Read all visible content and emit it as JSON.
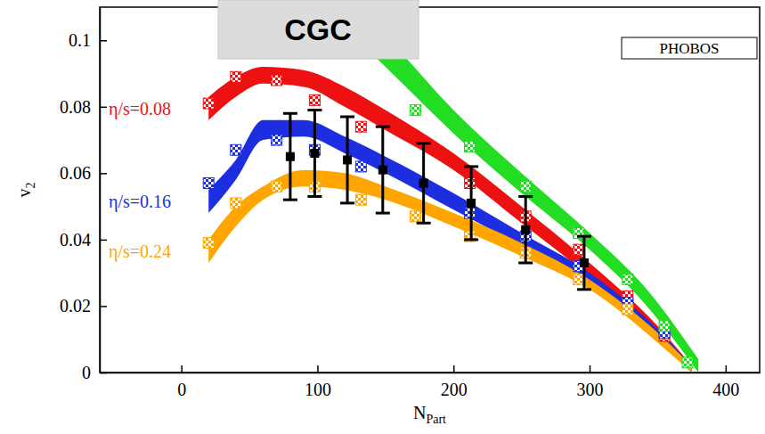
{
  "chart_data": {
    "type": "line",
    "x_label": "N",
    "x_label_subscript": "Part",
    "y_label": "v",
    "y_label_subscript": "2",
    "xlim": [
      -60,
      425
    ],
    "ylim": [
      0,
      0.11
    ],
    "xticks": [
      0,
      100,
      200,
      300,
      400
    ],
    "yticks": [
      0,
      0.02,
      0.04,
      0.06,
      0.08,
      0.1
    ],
    "legend": "top-right",
    "annotations": [
      {
        "text": "CGC"
      }
    ],
    "series": [
      {
        "type": "band",
        "color": "#22dd22",
        "x": [
          120,
          160,
          200,
          250,
          300,
          340,
          380
        ],
        "lower": [
          0.104,
          0.088,
          0.072,
          0.054,
          0.037,
          0.021,
          0.0
        ],
        "upper": [
          0.114,
          0.097,
          0.079,
          0.06,
          0.042,
          0.026,
          0.004
        ]
      },
      {
        "type": "band",
        "name": "η/s=0.08",
        "color": "#ee1111",
        "x": [
          20,
          40,
          60,
          90,
          120,
          150,
          200,
          250,
          300,
          350,
          375
        ],
        "lower": [
          0.076,
          0.083,
          0.087,
          0.086,
          0.08,
          0.073,
          0.061,
          0.045,
          0.029,
          0.011,
          0.0
        ],
        "upper": [
          0.083,
          0.089,
          0.092,
          0.091,
          0.086,
          0.079,
          0.066,
          0.05,
          0.033,
          0.014,
          0.002
        ]
      },
      {
        "type": "band",
        "name": "η/s=0.16",
        "color": "#1c2ee0",
        "x": [
          20,
          40,
          60,
          90,
          120,
          150,
          200,
          250,
          300,
          350,
          375
        ],
        "lower": [
          0.048,
          0.058,
          0.07,
          0.071,
          0.066,
          0.06,
          0.049,
          0.038,
          0.026,
          0.01,
          0.0
        ],
        "upper": [
          0.055,
          0.064,
          0.076,
          0.076,
          0.071,
          0.065,
          0.054,
          0.042,
          0.03,
          0.013,
          0.002
        ]
      },
      {
        "type": "band",
        "name": "η/s=0.24",
        "color": "#ffa500",
        "x": [
          20,
          40,
          60,
          90,
          120,
          150,
          200,
          250,
          300,
          350,
          375
        ],
        "lower": [
          0.033,
          0.044,
          0.052,
          0.056,
          0.055,
          0.052,
          0.044,
          0.035,
          0.025,
          0.009,
          0.0
        ],
        "upper": [
          0.04,
          0.05,
          0.056,
          0.061,
          0.06,
          0.056,
          0.048,
          0.039,
          0.028,
          0.012,
          0.002
        ]
      },
      {
        "type": "scatter",
        "marker": "checkered-square",
        "color": "#ee1111",
        "x": [
          20,
          40,
          70,
          98,
          132,
          212,
          253,
          292,
          328,
          355
        ],
        "values": [
          0.081,
          0.089,
          0.088,
          0.082,
          0.074,
          0.057,
          0.047,
          0.037,
          0.023,
          0.011
        ]
      },
      {
        "type": "scatter",
        "marker": "checkered-square",
        "color": "#1c2ee0",
        "x": [
          20,
          40,
          70,
          98,
          132,
          212,
          253,
          292,
          328,
          355
        ],
        "values": [
          0.057,
          0.067,
          0.07,
          0.067,
          0.062,
          0.048,
          0.041,
          0.032,
          0.021,
          0.012
        ]
      },
      {
        "type": "scatter",
        "marker": "checkered-square",
        "color": "#ffa500",
        "x": [
          20,
          40,
          70,
          98,
          132,
          172,
          212,
          253,
          292,
          328
        ],
        "values": [
          0.039,
          0.051,
          0.056,
          0.056,
          0.052,
          0.047,
          0.041,
          0.036,
          0.028,
          0.019
        ]
      },
      {
        "type": "scatter",
        "marker": "checkered-square",
        "color": "#22dd22",
        "x": [
          172,
          212,
          253,
          292,
          328,
          355,
          372
        ],
        "values": [
          0.079,
          0.068,
          0.056,
          0.042,
          0.028,
          0.014,
          0.003
        ]
      },
      {
        "type": "scatter",
        "marker": "square",
        "name": "PHOBOS",
        "color": "#000000",
        "x": [
          80,
          98,
          122,
          148,
          178,
          213,
          253,
          296
        ],
        "values": [
          0.065,
          0.066,
          0.064,
          0.061,
          0.057,
          0.051,
          0.043,
          0.033
        ],
        "errors": [
          0.013,
          0.013,
          0.013,
          0.013,
          0.012,
          0.011,
          0.01,
          0.008
        ]
      }
    ]
  }
}
